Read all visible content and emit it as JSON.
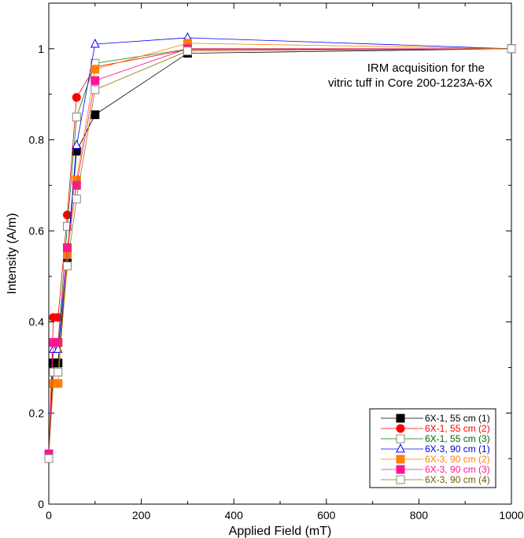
{
  "chart_data": {
    "type": "line",
    "title": "",
    "annotation_lines": [
      "IRM acquisition for the",
      "vitric tuff in Core 200-1223A-6X"
    ],
    "xlabel": "Applied Field (mT)",
    "ylabel": "Intensity (A/m)",
    "xlim": [
      0,
      1000
    ],
    "ylim": [
      0,
      1.1
    ],
    "xticks": [
      0,
      200,
      400,
      600,
      800,
      1000
    ],
    "yticks": [
      0,
      0.2,
      0.4,
      0.6,
      0.8,
      1
    ],
    "ytick_labels": [
      "0",
      "0.2",
      "0.4",
      "0.6",
      "0.8",
      "1"
    ],
    "grid": false,
    "legend_position": "bottom-right",
    "x": [
      0,
      10,
      20,
      40,
      60,
      100,
      300,
      1000
    ],
    "series": [
      {
        "name": "6X-1, 55 cm (1)",
        "color": "#000000",
        "text_color": "#000000",
        "marker": "square-filled",
        "values": [
          0.11,
          0.31,
          0.31,
          0.535,
          0.775,
          0.855,
          0.99,
          1.0
        ]
      },
      {
        "name": "6X-1, 55 cm (2)",
        "color": "#ff0000",
        "text_color": "#ff0000",
        "marker": "circle-filled",
        "values": [
          0.11,
          0.41,
          0.41,
          0.635,
          0.893,
          0.96,
          0.998,
          1.0
        ]
      },
      {
        "name": "6X-1, 55 cm (3)",
        "color": "#008000",
        "text_color": "#006400",
        "marker": "square-open",
        "values": [
          0.11,
          0.355,
          0.355,
          0.61,
          0.85,
          0.968,
          0.999,
          1.0
        ]
      },
      {
        "name": "6X-3, 90 cm (1)",
        "color": "#0000ff",
        "text_color": "#0000cc",
        "marker": "triangle-open",
        "values": [
          0.11,
          0.34,
          0.34,
          0.545,
          0.788,
          1.01,
          1.024,
          1.0
        ]
      },
      {
        "name": "6X-3, 90 cm (2)",
        "color": "#ff7f00",
        "text_color": "#ff7f00",
        "marker": "square-filled",
        "values": [
          0.11,
          0.265,
          0.265,
          0.548,
          0.712,
          0.955,
          1.012,
          1.0
        ]
      },
      {
        "name": "6X-3, 90 cm (3)",
        "color": "#ff1493",
        "text_color": "#ff1493",
        "marker": "square-filled",
        "values": [
          0.11,
          0.355,
          0.355,
          0.563,
          0.7,
          0.93,
          1.0,
          1.0
        ]
      },
      {
        "name": "6X-3, 90 cm (4)",
        "color": "#8b7d00",
        "text_color": "#6b5a00",
        "marker": "square-open",
        "values": [
          0.1,
          0.29,
          0.29,
          0.523,
          0.67,
          0.91,
          0.995,
          1.0
        ]
      }
    ]
  }
}
